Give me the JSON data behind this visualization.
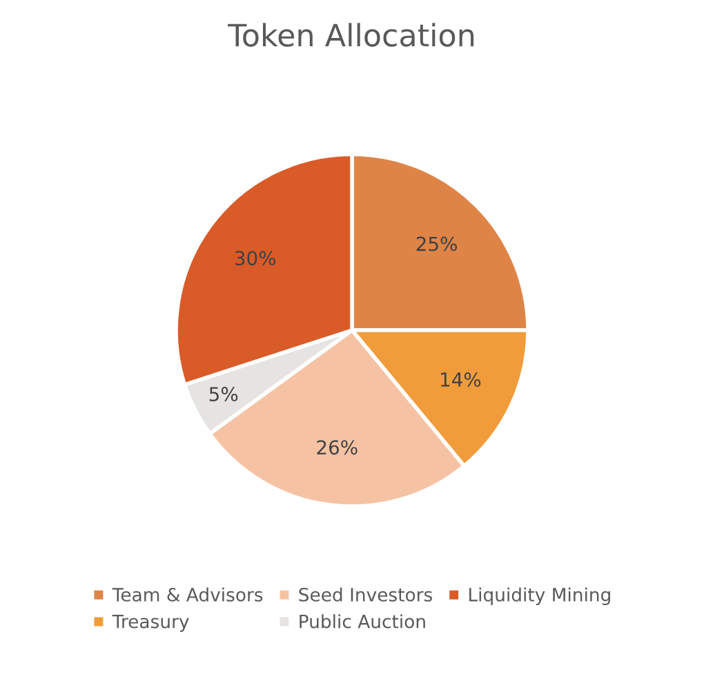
{
  "chart_data": {
    "type": "pie",
    "title": "Token Allocation",
    "categories": [
      "Team & Advisors",
      "Treasury",
      "Seed Investors",
      "Public Auction",
      "Liquidity Mining"
    ],
    "values": [
      25,
      14,
      26,
      5,
      30
    ],
    "colors": [
      "#df8447",
      "#f19c3a",
      "#f5c3a4",
      "#e6e4e2",
      "#d95b28"
    ],
    "value_labels": [
      "25%",
      "14%",
      "26%",
      "5%",
      "30%"
    ],
    "legend": "bottom"
  }
}
